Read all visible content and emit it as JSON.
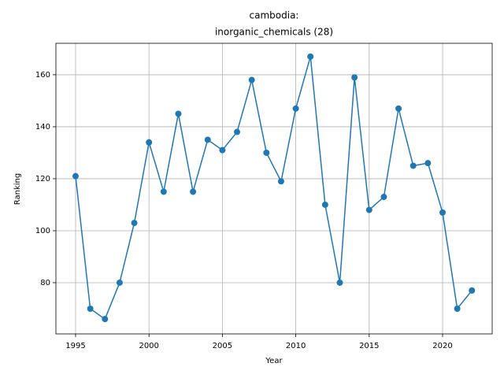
{
  "chart_data": {
    "type": "line",
    "title": [
      "cambodia:",
      "inorganic_chemicals (28)"
    ],
    "x_label": "Year",
    "y_label": "Ranking",
    "x": [
      1995,
      1996,
      1997,
      1998,
      1999,
      2000,
      2001,
      2002,
      2003,
      2004,
      2005,
      2006,
      2007,
      2008,
      2009,
      2010,
      2011,
      2012,
      2013,
      2014,
      2015,
      2016,
      2017,
      2018,
      2019,
      2020,
      2021,
      2022
    ],
    "series": [
      {
        "color": "#1f77b4",
        "values": [
          121,
          70,
          66,
          80,
          103,
          134,
          115,
          145,
          115,
          135,
          131,
          138,
          158,
          130,
          119,
          147,
          167,
          110,
          80,
          159,
          108,
          113,
          147,
          125,
          126,
          107,
          70,
          77
        ]
      }
    ],
    "xlim": [
      1993.66,
      2023.38
    ],
    "ylim": [
      60.3,
      172.1
    ],
    "xticks": [
      1995,
      2000,
      2005,
      2010,
      2015,
      2020
    ],
    "yticks": [
      80,
      100,
      120,
      140,
      160
    ],
    "grid": true
  }
}
